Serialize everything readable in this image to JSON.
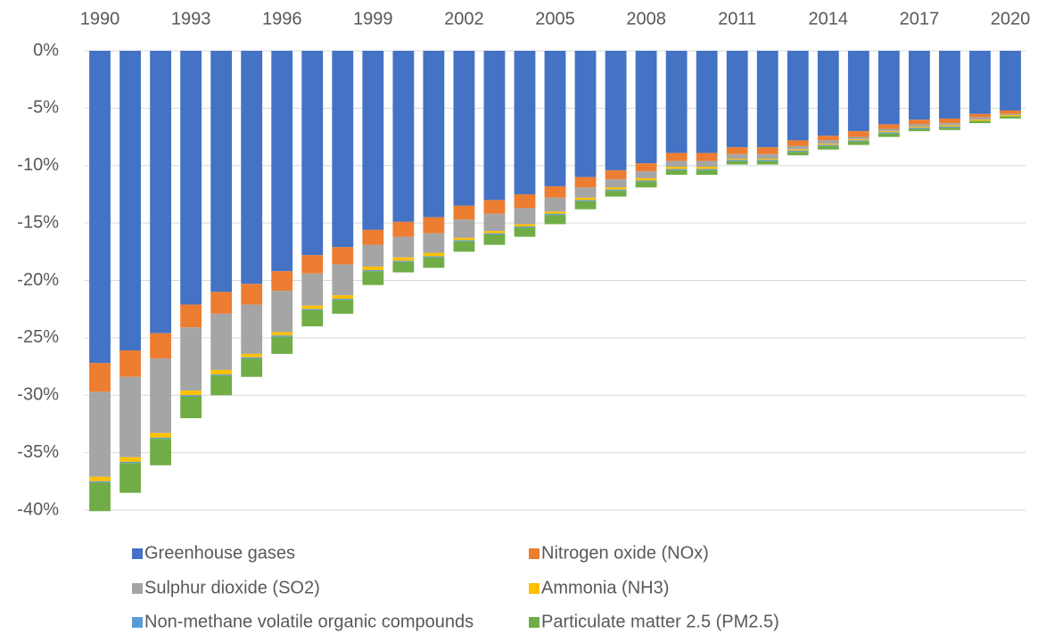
{
  "chart_data": {
    "type": "stacked-bar",
    "categories": [
      "1990",
      null,
      null,
      "1993",
      null,
      null,
      "1996",
      null,
      null,
      "1999",
      null,
      null,
      "2002",
      null,
      null,
      "2005",
      null,
      null,
      "2008",
      null,
      null,
      "2011",
      null,
      null,
      "2014",
      null,
      null,
      "2017",
      null,
      null,
      "2020"
    ],
    "series": [
      {
        "name": "Greenhouse gases",
        "color": "#4472c4",
        "values": [
          -27.2,
          -26.1,
          -24.6,
          -22.1,
          -21.0,
          -20.3,
          -19.2,
          -17.8,
          -17.1,
          -15.6,
          -14.9,
          -14.5,
          -13.5,
          -13.0,
          -12.5,
          -11.8,
          -11.0,
          -10.4,
          -9.8,
          -8.9,
          -8.9,
          -8.4,
          -8.4,
          -7.8,
          -7.4,
          -7.0,
          -6.4,
          -6.0,
          -5.9,
          -5.5,
          -5.2
        ]
      },
      {
        "name": "Nitrogen oxide (NOx)",
        "color": "#ed7d31",
        "values": [
          -2.5,
          -2.3,
          -2.2,
          -2.0,
          -1.9,
          -1.8,
          -1.7,
          -1.6,
          -1.5,
          -1.3,
          -1.3,
          -1.4,
          -1.2,
          -1.2,
          -1.2,
          -1.0,
          -0.9,
          -0.8,
          -0.7,
          -0.7,
          -0.7,
          -0.6,
          -0.6,
          -0.5,
          -0.4,
          -0.5,
          -0.4,
          -0.4,
          -0.4,
          -0.3,
          -0.3
        ]
      },
      {
        "name": "Sulphur dioxide (SO2)",
        "color": "#a5a5a5",
        "values": [
          -7.4,
          -7.0,
          -6.5,
          -5.5,
          -4.9,
          -4.3,
          -3.6,
          -2.8,
          -2.7,
          -1.9,
          -1.8,
          -1.7,
          -1.6,
          -1.5,
          -1.4,
          -1.2,
          -0.9,
          -0.7,
          -0.6,
          -0.5,
          -0.5,
          -0.4,
          -0.4,
          -0.3,
          -0.3,
          -0.2,
          -0.2,
          -0.2,
          -0.2,
          -0.2,
          -0.1
        ]
      },
      {
        "name": "Ammonia (NH3)",
        "color": "#ffc000",
        "values": [
          -0.4,
          -0.4,
          -0.4,
          -0.4,
          -0.4,
          -0.3,
          -0.3,
          -0.3,
          -0.3,
          -0.3,
          -0.3,
          -0.3,
          -0.2,
          -0.2,
          -0.2,
          -0.2,
          -0.2,
          -0.2,
          -0.2,
          -0.2,
          -0.2,
          -0.1,
          -0.1,
          -0.1,
          -0.1,
          -0.1,
          -0.1,
          -0.1,
          -0.1,
          -0.1,
          -0.1
        ]
      },
      {
        "name": "Non-methane volatile organic compounds",
        "color": "#5b9bd5",
        "values": [
          -0.1,
          -0.1,
          -0.1,
          -0.1,
          -0.1,
          -0.1,
          -0.1,
          -0.1,
          -0.1,
          -0.1,
          -0.1,
          -0.1,
          -0.1,
          -0.1,
          -0.1,
          -0.1,
          -0.1,
          -0.1,
          -0.1,
          -0.1,
          -0.1,
          -0.1,
          -0.1,
          -0.1,
          -0.1,
          -0.1,
          -0.1,
          -0.1,
          -0.1,
          0,
          0
        ]
      },
      {
        "name": "Particulate matter 2.5 (PM2.5)",
        "color": "#70ad47",
        "values": [
          -2.5,
          -2.6,
          -2.3,
          -1.9,
          -1.7,
          -1.6,
          -1.5,
          -1.4,
          -1.2,
          -1.2,
          -0.9,
          -0.9,
          -0.9,
          -0.9,
          -0.8,
          -0.8,
          -0.7,
          -0.5,
          -0.5,
          -0.4,
          -0.4,
          -0.3,
          -0.3,
          -0.3,
          -0.3,
          -0.3,
          -0.3,
          -0.2,
          -0.2,
          -0.2,
          -0.2
        ]
      }
    ],
    "ylim": [
      -40,
      0
    ],
    "yticks": [
      {
        "value": 0,
        "label": "0%"
      },
      {
        "value": -5,
        "label": "-5%"
      },
      {
        "value": -10,
        "label": "-10%"
      },
      {
        "value": -15,
        "label": "-15%"
      },
      {
        "value": -20,
        "label": "-20%"
      },
      {
        "value": -25,
        "label": "-25%"
      },
      {
        "value": -30,
        "label": "-30%"
      },
      {
        "value": -35,
        "label": "-35%"
      },
      {
        "value": -40,
        "label": "-40%"
      }
    ],
    "grid": true,
    "legend": "bottom"
  }
}
